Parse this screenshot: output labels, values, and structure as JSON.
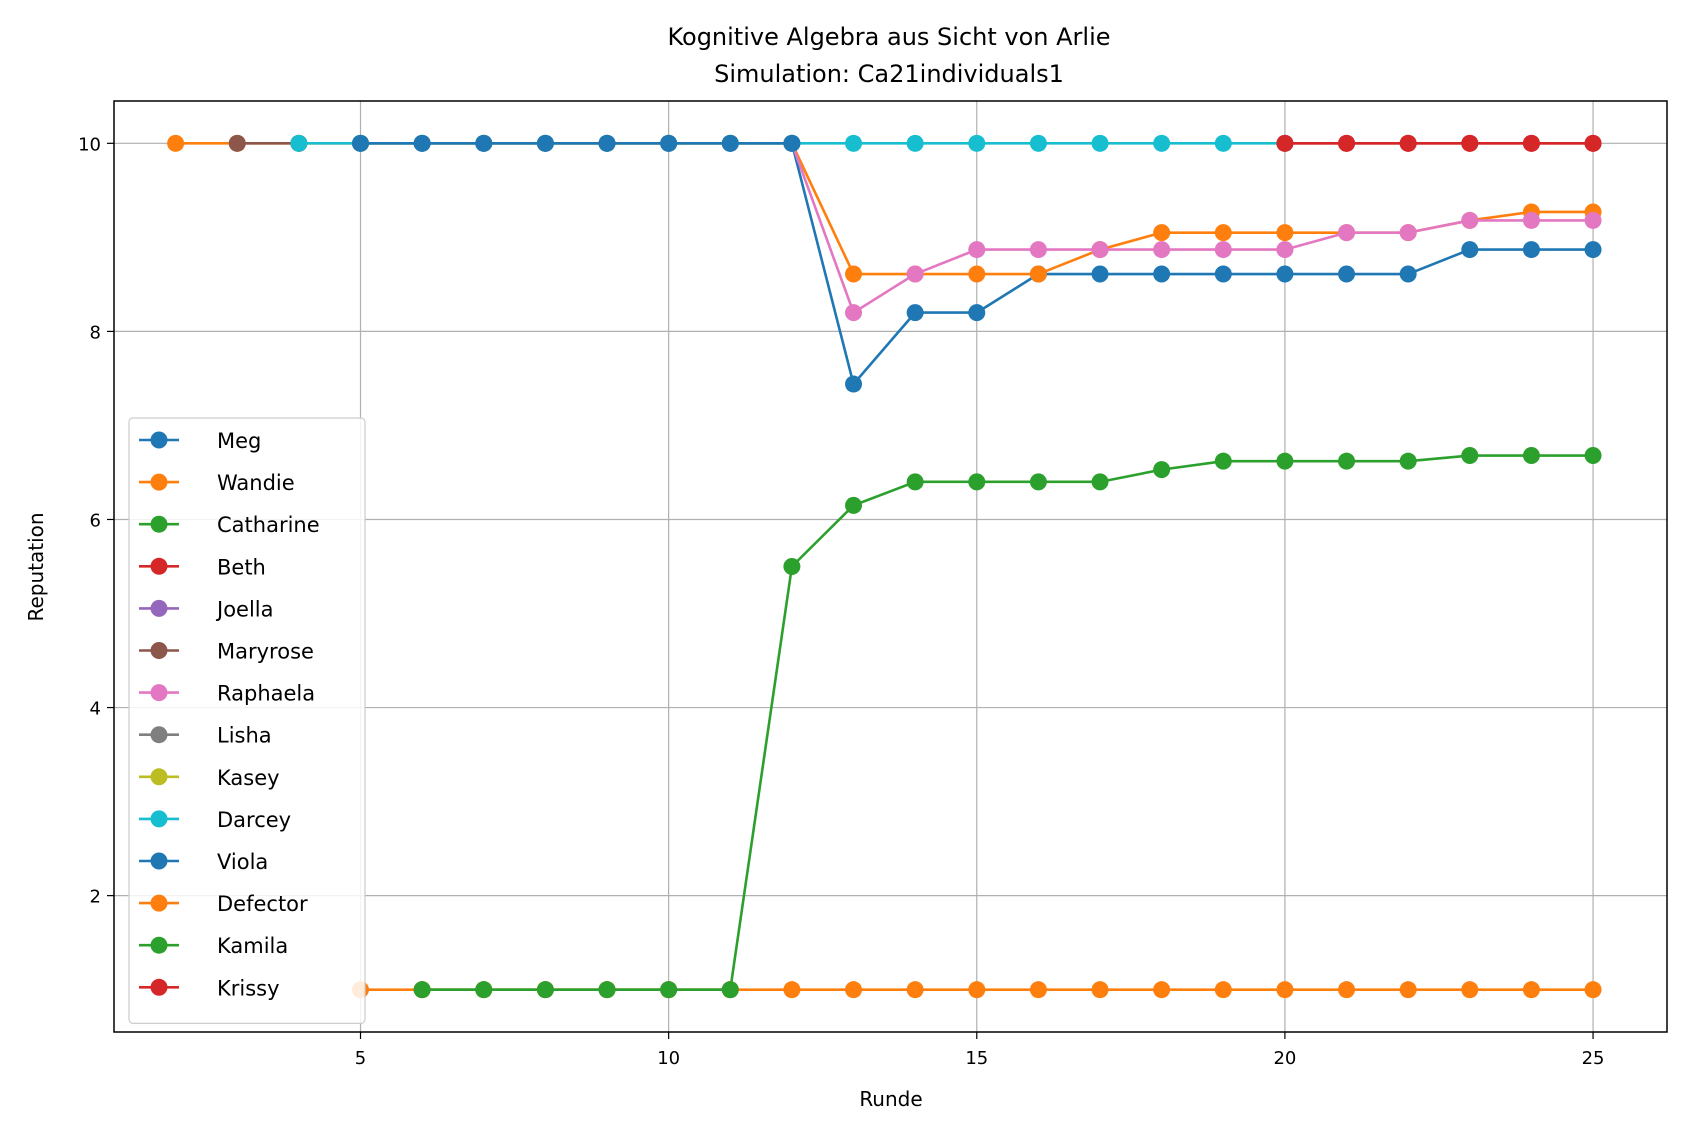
{
  "chart_data": {
    "type": "line",
    "title": "Kognitive Algebra aus Sicht von Arlie",
    "subtitle": "Simulation: Ca21individuals1",
    "xlabel": "Runde",
    "ylabel": "Reputation",
    "xlim": [
      1,
      26.2
    ],
    "ylim": [
      0.55,
      10.45
    ],
    "xticks": [
      5,
      10,
      15,
      20,
      25
    ],
    "yticks": [
      2,
      4,
      6,
      8,
      10
    ],
    "grid": true,
    "legend_position": "lower left",
    "series": [
      {
        "name": "Meg",
        "color": "#1f77b4",
        "x": [
          5,
          6,
          7,
          8,
          9,
          10,
          11,
          12,
          13,
          14,
          15,
          16,
          17,
          18,
          19,
          20,
          21,
          22,
          23,
          24,
          25
        ],
        "y": [
          10,
          10,
          10,
          10,
          10,
          10,
          10,
          10,
          7.44,
          8.2,
          8.2,
          8.61,
          8.61,
          8.61,
          8.61,
          8.61,
          8.61,
          8.61,
          8.87,
          8.87,
          8.87
        ]
      },
      {
        "name": "Wandie",
        "color": "#ff7f0e",
        "x": [
          2,
          3,
          4,
          5,
          6,
          7,
          8,
          9,
          10,
          11,
          12,
          13,
          14,
          15,
          16,
          17,
          18,
          19,
          20,
          21,
          22,
          23,
          24,
          25
        ],
        "y": [
          10,
          10,
          10,
          10,
          10,
          10,
          10,
          10,
          10,
          10,
          10,
          8.61,
          8.61,
          8.61,
          8.61,
          8.87,
          9.05,
          9.05,
          9.05,
          9.05,
          9.05,
          9.18,
          9.27,
          9.27
        ]
      },
      {
        "name": "Catharine",
        "color": "#2ca02c",
        "x": [
          6,
          7,
          8,
          9,
          10,
          11,
          12,
          13,
          14,
          15,
          16,
          17,
          18,
          19,
          20,
          21,
          22,
          23,
          24,
          25
        ],
        "y": [
          1,
          1,
          1,
          1,
          1,
          1,
          5.5,
          6.15,
          6.4,
          6.4,
          6.4,
          6.4,
          6.53,
          6.62,
          6.62,
          6.62,
          6.62,
          6.68,
          6.68,
          6.68
        ]
      },
      {
        "name": "Beth",
        "color": "#d62728",
        "x": [
          20,
          21,
          22,
          23,
          24,
          25
        ],
        "y": [
          10,
          10,
          10,
          10,
          10,
          10
        ]
      },
      {
        "name": "Joella",
        "color": "#9467bd",
        "x": [],
        "y": []
      },
      {
        "name": "Maryrose",
        "color": "#8c564b",
        "x": [
          3,
          4
        ],
        "y": [
          10,
          10
        ]
      },
      {
        "name": "Raphaela",
        "color": "#e377c2",
        "x": [
          12,
          13,
          14,
          15,
          16,
          17,
          18,
          19,
          20,
          21,
          22,
          23,
          24,
          25
        ],
        "y": [
          10,
          8.2,
          8.61,
          8.87,
          8.87,
          8.87,
          8.87,
          8.87,
          8.87,
          9.05,
          9.05,
          9.18,
          9.18,
          9.18
        ]
      },
      {
        "name": "Lisha",
        "color": "#7f7f7f",
        "x": [],
        "y": []
      },
      {
        "name": "Kasey",
        "color": "#bcbd22",
        "x": [],
        "y": []
      },
      {
        "name": "Darcey",
        "color": "#17becf",
        "x": [
          4,
          5,
          6,
          7,
          8,
          9,
          10,
          11,
          12,
          13,
          14,
          15,
          16,
          17,
          18,
          19,
          20
        ],
        "y": [
          10,
          10,
          10,
          10,
          10,
          10,
          10,
          10,
          10,
          10,
          10,
          10,
          10,
          10,
          10,
          10,
          10
        ]
      },
      {
        "name": "Viola",
        "color": "#1f77b4",
        "x": [
          5,
          6,
          7,
          8,
          9,
          10,
          11,
          12
        ],
        "y": [
          10,
          10,
          10,
          10,
          10,
          10,
          10,
          10
        ]
      },
      {
        "name": "Defector",
        "color": "#ff7f0e",
        "x": [
          5,
          6,
          7,
          8,
          9,
          10,
          11,
          12,
          13,
          14,
          15,
          16,
          17,
          18,
          19,
          20,
          21,
          22,
          23,
          24,
          25
        ],
        "y": [
          1,
          1,
          1,
          1,
          1,
          1,
          1,
          1,
          1,
          1,
          1,
          1,
          1,
          1,
          1,
          1,
          1,
          1,
          1,
          1,
          1
        ]
      },
      {
        "name": "Kamila",
        "color": "#2ca02c",
        "x": [
          6,
          7,
          8,
          9,
          10,
          11
        ],
        "y": [
          1,
          1,
          1,
          1,
          1,
          1
        ]
      },
      {
        "name": "Krissy",
        "color": "#d62728",
        "x": [
          20,
          21,
          22,
          23,
          24,
          25
        ],
        "y": [
          10,
          10,
          10,
          10,
          10,
          10
        ]
      }
    ]
  }
}
